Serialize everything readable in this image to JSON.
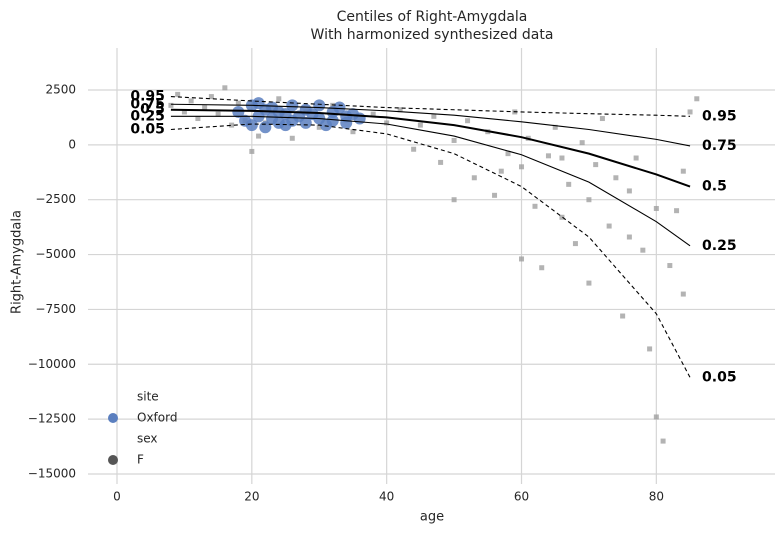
{
  "chart_data": {
    "type": "scatter",
    "title": "Centiles of Right-Amygdala",
    "subtitle": "With harmonized synthesized data",
    "x_label": "age",
    "y_label": "Right-Amygdala",
    "xlim": [
      -4.3,
      97.6
    ],
    "ylim": [
      -15456,
      4414
    ],
    "xticks": [
      0,
      20,
      40,
      60,
      80
    ],
    "yticks": [
      2500,
      0,
      {
        "value": -2500,
        "label": "−2500"
      },
      {
        "value": -5000,
        "label": "−5000"
      },
      {
        "value": -7500,
        "label": "−7500"
      },
      {
        "value": -10000,
        "label": "−10000"
      },
      {
        "value": -12500,
        "label": "−12500"
      },
      {
        "value": -15000,
        "label": "−15000"
      }
    ],
    "grid": true,
    "series": [
      {
        "color": "#9a9a9a",
        "x": [
          8,
          9,
          10,
          11,
          12,
          13,
          14,
          15,
          16,
          17,
          18,
          19,
          20,
          21,
          22,
          24,
          26,
          28,
          30,
          32,
          35,
          38,
          40,
          42,
          44,
          45,
          47,
          48,
          50,
          52,
          53,
          55,
          56,
          58,
          59,
          60,
          60,
          61,
          62,
          63,
          64,
          65,
          66,
          67,
          68,
          69,
          70,
          70,
          71,
          72,
          73,
          74,
          75,
          76,
          77,
          78,
          79,
          80,
          80,
          81,
          82,
          83,
          84,
          85,
          86,
          84,
          76,
          66,
          57,
          50
        ],
        "values": [
          1800,
          2300,
          1500,
          2000,
          1200,
          1700,
          2200,
          1400,
          2600,
          900,
          1900,
          1100,
          -300,
          400,
          1000,
          2100,
          300,
          1500,
          800,
          1800,
          600,
          1400,
          1000,
          1600,
          -200,
          900,
          1300,
          -800,
          200,
          1100,
          -1500,
          600,
          -2300,
          -400,
          1500,
          -1000,
          -5200,
          300,
          -2800,
          -5600,
          -500,
          800,
          -3300,
          -1800,
          -4500,
          100,
          -2500,
          -6300,
          -900,
          1200,
          -3700,
          -1500,
          -7800,
          -2100,
          -600,
          -4800,
          -9300,
          -2900,
          -12400,
          -13500,
          -5500,
          -3000,
          -1200,
          1500,
          2100,
          -6800,
          -4200,
          -600,
          -1200,
          -2500
        ]
      },
      {
        "color": "#5b7fbf",
        "x": [
          18,
          19,
          20,
          20,
          21,
          21,
          22,
          22,
          23,
          23,
          24,
          24,
          25,
          25,
          26,
          26,
          27,
          28,
          28,
          29,
          30,
          30,
          31,
          32,
          32,
          33,
          34,
          34,
          35,
          36
        ],
        "values": [
          1500,
          1100,
          1800,
          900,
          1300,
          1900,
          800,
          1600,
          1200,
          1700,
          1000,
          1500,
          1400,
          900,
          1800,
          1100,
          1300,
          1600,
          1000,
          1400,
          1200,
          1800,
          900,
          1500,
          1100,
          1700,
          1300,
          1000,
          1400,
          1200
        ]
      }
    ],
    "centiles": {
      "x": [
        8,
        20,
        30,
        40,
        50,
        60,
        70,
        80,
        85
      ],
      "curves": [
        {
          "name": "0.95",
          "values": [
            2200,
            2000,
            1850,
            1700,
            1600,
            1500,
            1420,
            1350,
            1300
          ],
          "dashed": true,
          "bold": false
        },
        {
          "name": "0.75",
          "values": [
            1850,
            1800,
            1700,
            1550,
            1350,
            1050,
            700,
            250,
            -50
          ],
          "dashed": false,
          "bold": false
        },
        {
          "name": "0.5",
          "values": [
            1600,
            1550,
            1450,
            1250,
            900,
            350,
            -400,
            -1350,
            -1900
          ],
          "dashed": false,
          "bold": true
        },
        {
          "name": "0.25",
          "values": [
            1300,
            1300,
            1200,
            950,
            400,
            -450,
            -1700,
            -3500,
            -4600
          ],
          "dashed": false,
          "bold": false
        },
        {
          "name": "0.05",
          "values": [
            700,
            950,
            900,
            500,
            -400,
            -1900,
            -4200,
            -7700,
            -10600
          ],
          "dashed": true,
          "bold": false
        }
      ]
    },
    "legend_loc": "lower left",
    "legend": [
      {
        "title": "site",
        "entries": [
          {
            "label": "Oxford",
            "color": "#5b7fbf"
          }
        ]
      },
      {
        "title": "sex",
        "entries": [
          {
            "label": "F",
            "color": "#555555"
          }
        ]
      }
    ]
  }
}
